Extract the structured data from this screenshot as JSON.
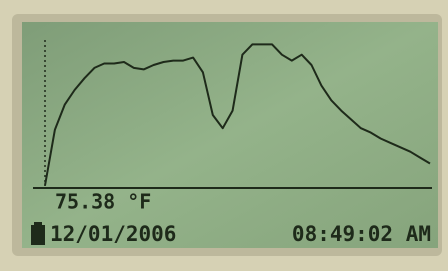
{
  "chart_data": {
    "type": "line",
    "values": [
      1,
      39,
      56,
      66,
      74,
      81,
      84,
      84,
      85,
      81,
      80,
      83,
      85,
      86,
      86,
      88,
      78,
      49,
      40,
      52,
      90,
      97,
      97,
      97,
      90,
      86,
      90,
      83,
      69,
      59,
      52,
      46,
      40,
      37,
      33,
      30,
      27,
      24,
      20,
      16
    ],
    "ylim": [
      0,
      100
    ],
    "color": "#1e2a1a",
    "reading": "75.38 °F",
    "date": "12/01/2006",
    "time": "08:49:02 AM"
  }
}
